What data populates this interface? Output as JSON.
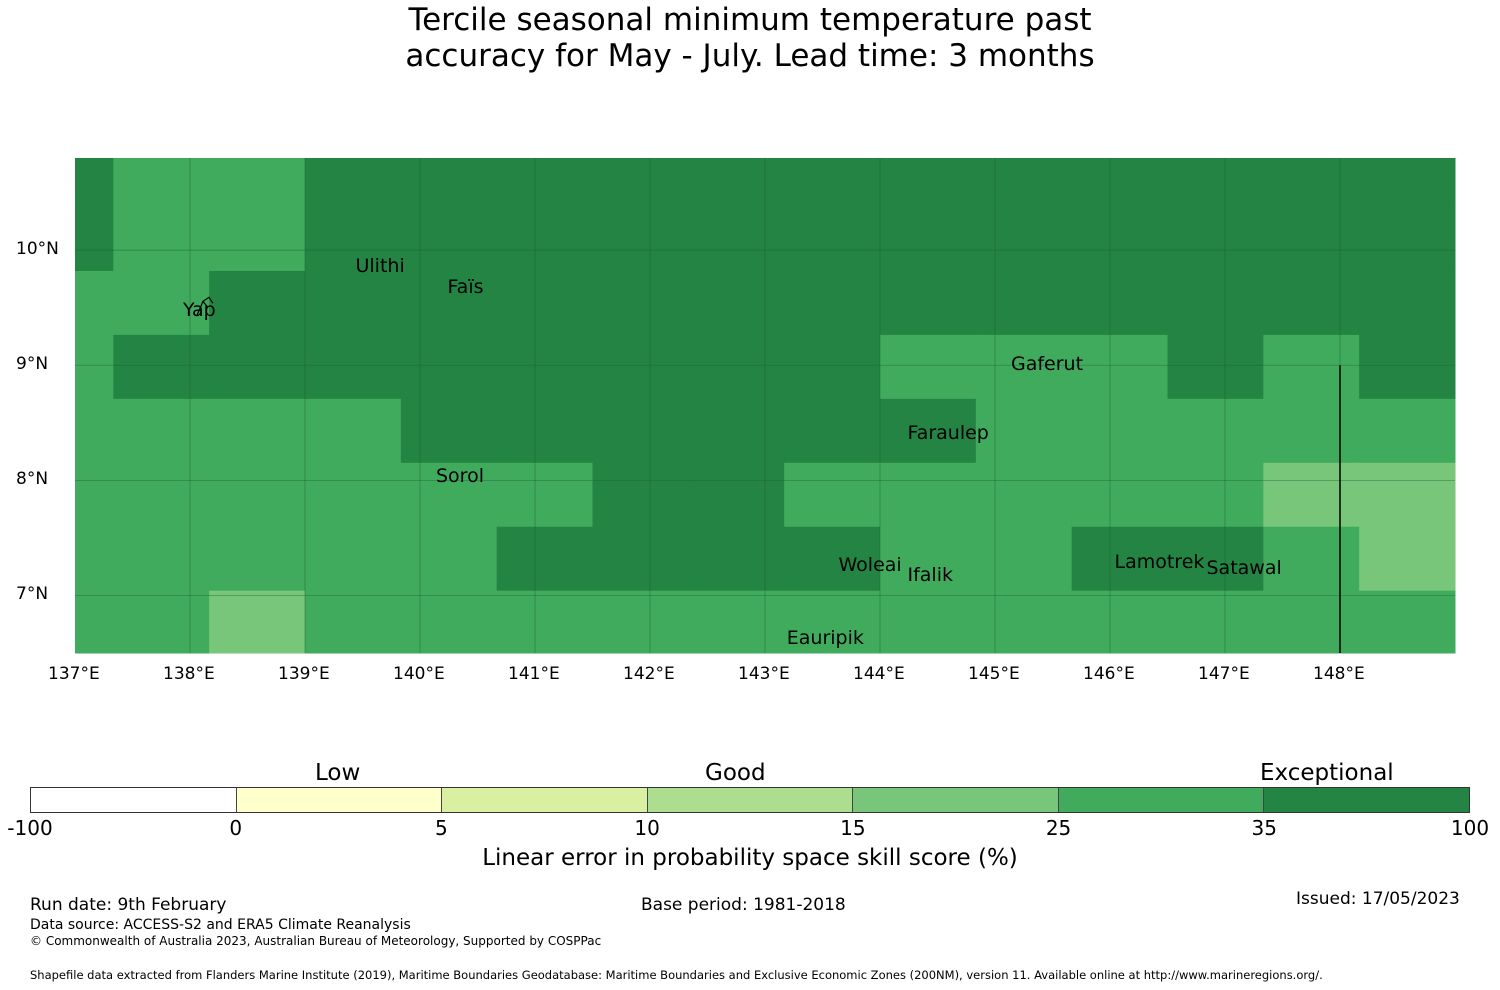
{
  "title_line1": "Tercile seasonal minimum temperature past",
  "title_line2": "accuracy for May - July. Lead time: 3 months",
  "map": {
    "lon_range": [
      137,
      149
    ],
    "lat_range": [
      6.5,
      10.8
    ],
    "lon_ticks": [
      "137°E",
      "138°E",
      "139°E",
      "140°E",
      "141°E",
      "142°E",
      "143°E",
      "144°E",
      "145°E",
      "146°E",
      "147°E",
      "148°E"
    ],
    "lat_ticks": [
      "10°N",
      "9°N",
      "8°N",
      "7°N"
    ],
    "places": [
      {
        "name": "Ulithi",
        "lon": 139.7,
        "lat": 9.85
      },
      {
        "name": "Faïs",
        "lon": 140.5,
        "lat": 9.67
      },
      {
        "name": "Yap",
        "lon": 138.2,
        "lat": 9.47
      },
      {
        "name": "Gaferut",
        "lon": 145.4,
        "lat": 9.0
      },
      {
        "name": "Faraulep",
        "lon": 144.5,
        "lat": 8.4
      },
      {
        "name": "Sorol",
        "lon": 140.4,
        "lat": 8.03
      },
      {
        "name": "Woleai",
        "lon": 143.9,
        "lat": 7.26
      },
      {
        "name": "Ifalik",
        "lon": 144.5,
        "lat": 7.17
      },
      {
        "name": "Lamotrek",
        "lon": 146.3,
        "lat": 7.28
      },
      {
        "name": "Satawal",
        "lon": 147.1,
        "lat": 7.23
      },
      {
        "name": "Eauripik",
        "lon": 143.45,
        "lat": 6.62
      }
    ],
    "colors": {
      "exceptional": "#238443",
      "good_high": "#41ab5d",
      "good_low": "#78c679"
    }
  },
  "colorbar": {
    "categories": [
      "Low",
      "Good",
      "Exceptional"
    ],
    "ticks": [
      "-100",
      "0",
      "5",
      "10",
      "15",
      "25",
      "35",
      "100"
    ],
    "colors": [
      "#ffffff",
      "#ffffcc",
      "#d9f0a3",
      "#addd8e",
      "#78c679",
      "#41ab5d",
      "#238443"
    ],
    "label": "Linear error in probability space skill score (%)"
  },
  "footer": {
    "run_date": "Run date: 9th February",
    "base_period": "Base period: 1981-2018",
    "issued": "Issued: 17/05/2023",
    "data_source": "Data source: ACCESS-S2 and ERA5 Climate Reanalysis",
    "copyright": "© Commonwealth of Australia 2023, Australian Bureau of Meteorology, Supported by COSPPac",
    "shapefile": "Shapefile data extracted from Flanders Marine Institute (2019), Maritime Boundaries Geodatabase: Maritime Boundaries and Exclusive Economic Zones (200NM), version 11. Available online at http://www.marineregions.org/."
  }
}
